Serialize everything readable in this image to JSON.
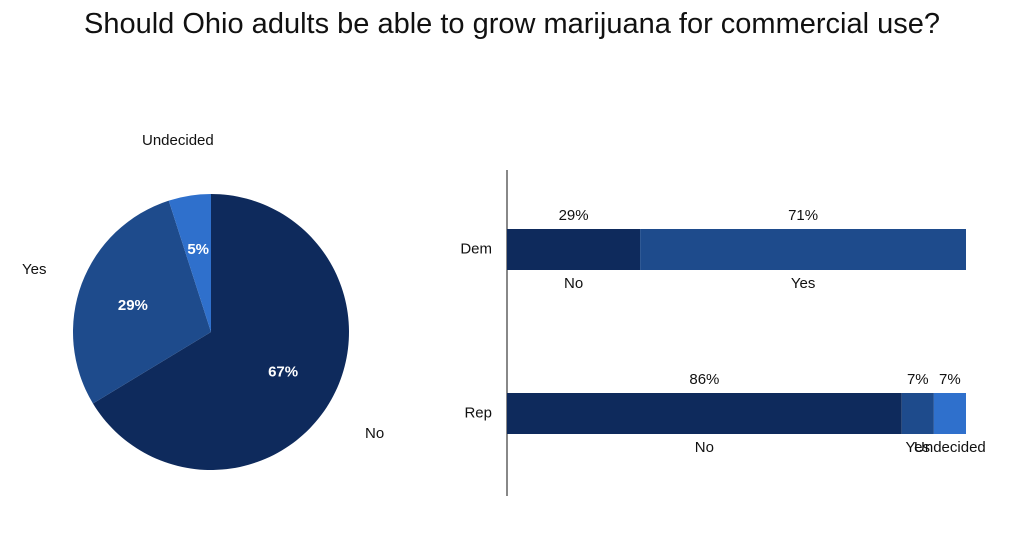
{
  "chart_data": [
    {
      "type": "pie",
      "title": "Should Ohio adults be able to grow marijuana for commercial use?",
      "slices": [
        {
          "label": "No",
          "value": 67,
          "display": "67%",
          "color": "#0e2a5c"
        },
        {
          "label": "Yes",
          "value": 29,
          "display": "29%",
          "color": "#1e4b8c"
        },
        {
          "label": "Undecided",
          "value": 5,
          "display": "5%",
          "color": "#2f70cc"
        }
      ],
      "start_angle_deg": 0,
      "direction": "clockwise"
    },
    {
      "type": "bar",
      "orientation": "horizontal",
      "stacked": true,
      "categories": [
        "Dem",
        "Rep"
      ],
      "series": [
        {
          "name": "No",
          "color": "#0e2a5c",
          "values": [
            29,
            86
          ],
          "display": [
            "29%",
            "86%"
          ]
        },
        {
          "name": "Yes",
          "color": "#1e4b8c",
          "values": [
            71,
            7
          ],
          "display": [
            "71%",
            "7%"
          ]
        },
        {
          "name": "Undecided",
          "color": "#2f70cc",
          "values": [
            0,
            7
          ],
          "display": [
            "",
            "7%"
          ]
        }
      ],
      "xlim": [
        0,
        100
      ]
    }
  ]
}
